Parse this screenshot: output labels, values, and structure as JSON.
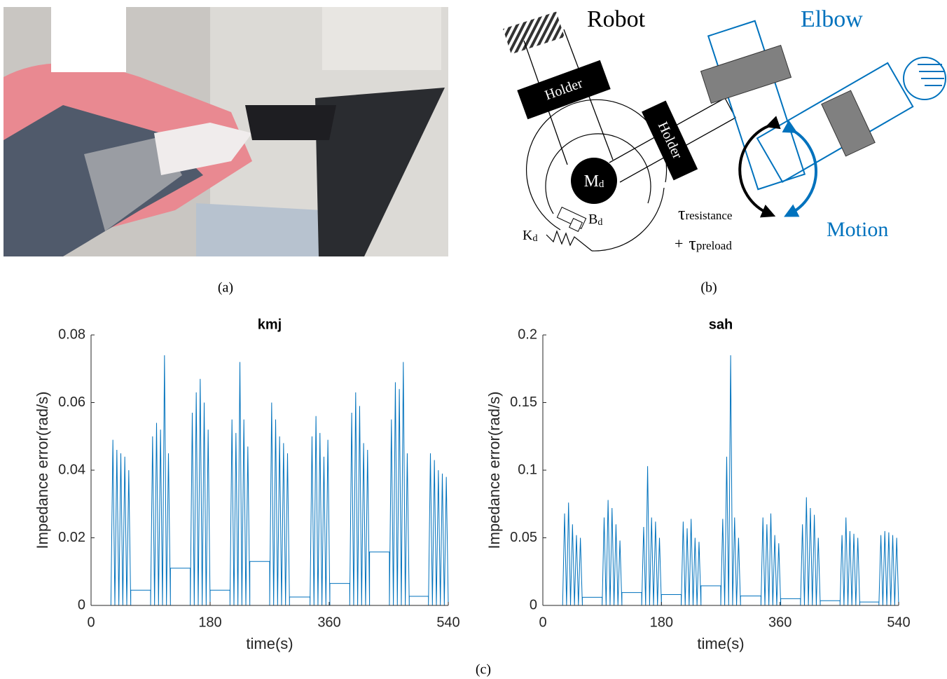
{
  "panels": {
    "a": "(a)",
    "b": "(b)",
    "c": "(c)"
  },
  "diagram": {
    "robot": "Robot",
    "elbow": "Elbow",
    "holder_top": "Holder",
    "holder_side": "Holder",
    "mass": {
      "base": "M",
      "sub": "d"
    },
    "damper": {
      "base": "B",
      "sub": "d"
    },
    "spring": {
      "base": "K",
      "sub": "d"
    },
    "tau_resistance": {
      "symbol": "τ",
      "sub": "resistance"
    },
    "tau_preload": {
      "plus": "+",
      "symbol": "τ",
      "sub": "preload"
    },
    "motion": "Motion"
  },
  "chart_data": [
    {
      "type": "line",
      "title": "kmj",
      "x_label": "time(s)",
      "y_label": "Impedance error(rad/s)",
      "xlim": [
        0,
        540
      ],
      "xticks": [
        0,
        180,
        360,
        540
      ],
      "ylim": [
        0,
        0.08
      ],
      "yticks": [
        0,
        0.02,
        0.04,
        0.06,
        0.08
      ],
      "series": [
        {
          "name": "kmj",
          "color": "#0072bd",
          "x": [
            0,
            30,
            33,
            36,
            39,
            42,
            45,
            48,
            51,
            54,
            57,
            60,
            60,
            90,
            90,
            93,
            96,
            99,
            102,
            105,
            108,
            111,
            114,
            117,
            120,
            120,
            150,
            150,
            153,
            156,
            159,
            162,
            165,
            168,
            171,
            174,
            177,
            180,
            180,
            210,
            210,
            213,
            216,
            219,
            222,
            225,
            228,
            231,
            234,
            237,
            240,
            240,
            270,
            270,
            273,
            276,
            279,
            282,
            285,
            288,
            291,
            294,
            297,
            300,
            300,
            331,
            331,
            334,
            337,
            340,
            343,
            346,
            349,
            352,
            355,
            358,
            361,
            361,
            391,
            391,
            394,
            397,
            400,
            403,
            406,
            409,
            412,
            415,
            418,
            421,
            421,
            451,
            451,
            454,
            457,
            460,
            463,
            466,
            469,
            472,
            475,
            478,
            481,
            481,
            510,
            510,
            513,
            516,
            519,
            522,
            525,
            528,
            531,
            534,
            537,
            540
          ],
          "values": [
            0,
            0,
            0.049,
            0,
            0.046,
            0,
            0.045,
            0,
            0.044,
            0,
            0.04,
            0,
            0.0045,
            0.0045,
            0,
            0.05,
            0,
            0.054,
            0,
            0.052,
            0,
            0.074,
            0,
            0.045,
            0,
            0.011,
            0.011,
            0,
            0.057,
            0,
            0.063,
            0,
            0.067,
            0,
            0.06,
            0,
            0.052,
            0,
            0.0045,
            0.0045,
            0,
            0.055,
            0,
            0.051,
            0,
            0.072,
            0,
            0.055,
            0,
            0.047,
            0,
            0.013,
            0.013,
            0,
            0.06,
            0,
            0.055,
            0,
            0.05,
            0,
            0.048,
            0,
            0.045,
            0,
            0.0025,
            0.0025,
            0,
            0.05,
            0,
            0.056,
            0,
            0.051,
            0,
            0.044,
            0,
            0.049,
            0,
            0.0065,
            0.0065,
            0,
            0.057,
            0,
            0.063,
            0,
            0.059,
            0,
            0.048,
            0,
            0.046,
            0,
            0.0158,
            0.0158,
            0,
            0.055,
            0,
            0.066,
            0,
            0.064,
            0,
            0.072,
            0,
            0.045,
            0,
            0.0027,
            0.0027,
            0,
            0.045,
            0,
            0.043,
            0,
            0.04,
            0,
            0.039,
            0,
            0.038,
            0
          ]
        }
      ]
    },
    {
      "type": "line",
      "title": "sah",
      "x_label": "time(s)",
      "y_label": "Impedance error(rad/s)",
      "xlim": [
        0,
        540
      ],
      "xticks": [
        0,
        180,
        360,
        540
      ],
      "ylim": [
        0,
        0.2
      ],
      "yticks": [
        0,
        0.05,
        0.1,
        0.15,
        0.2
      ],
      "series": [
        {
          "name": "sah",
          "color": "#0072bd",
          "x": [
            0,
            30,
            33,
            36,
            39,
            42,
            45,
            48,
            51,
            54,
            57,
            60,
            60,
            90,
            90,
            93,
            96,
            99,
            102,
            105,
            108,
            111,
            114,
            117,
            120,
            120,
            150,
            150,
            153,
            156,
            159,
            162,
            165,
            168,
            171,
            174,
            177,
            180,
            180,
            210,
            210,
            213,
            216,
            219,
            222,
            225,
            228,
            231,
            234,
            237,
            240,
            240,
            270,
            270,
            273,
            276,
            279,
            282,
            285,
            288,
            291,
            294,
            297,
            300,
            300,
            331,
            331,
            334,
            337,
            340,
            343,
            346,
            349,
            352,
            355,
            358,
            361,
            361,
            391,
            391,
            394,
            397,
            400,
            403,
            406,
            409,
            412,
            415,
            418,
            421,
            421,
            451,
            451,
            454,
            457,
            460,
            463,
            466,
            469,
            472,
            475,
            478,
            481,
            481,
            510,
            510,
            513,
            516,
            519,
            522,
            525,
            528,
            531,
            534,
            537,
            540
          ],
          "values": [
            0,
            0,
            0.068,
            0,
            0.076,
            0,
            0.06,
            0,
            0.052,
            0,
            0.05,
            0,
            0.006,
            0.006,
            0,
            0.065,
            0,
            0.078,
            0,
            0.072,
            0,
            0.06,
            0,
            0.048,
            0,
            0.0095,
            0.0095,
            0,
            0.058,
            0,
            0.103,
            0,
            0.065,
            0,
            0.062,
            0,
            0.05,
            0,
            0.008,
            0.008,
            0,
            0.062,
            0,
            0.057,
            0,
            0.064,
            0,
            0.05,
            0,
            0.047,
            0,
            0.0145,
            0.0145,
            0,
            0.064,
            0,
            0.11,
            0,
            0.185,
            0,
            0.065,
            0,
            0.05,
            0,
            0.007,
            0.007,
            0,
            0.065,
            0,
            0.06,
            0,
            0.068,
            0,
            0.052,
            0,
            0.046,
            0,
            0.005,
            0.005,
            0,
            0.06,
            0,
            0.08,
            0,
            0.072,
            0,
            0.067,
            0,
            0.05,
            0,
            0.0035,
            0.0035,
            0,
            0.052,
            0,
            0.065,
            0,
            0.055,
            0,
            0.053,
            0,
            0.05,
            0,
            0.0025,
            0.0025,
            0,
            0.052,
            0,
            0.055,
            0,
            0.054,
            0,
            0.052,
            0,
            0.05,
            0
          ]
        }
      ]
    }
  ]
}
